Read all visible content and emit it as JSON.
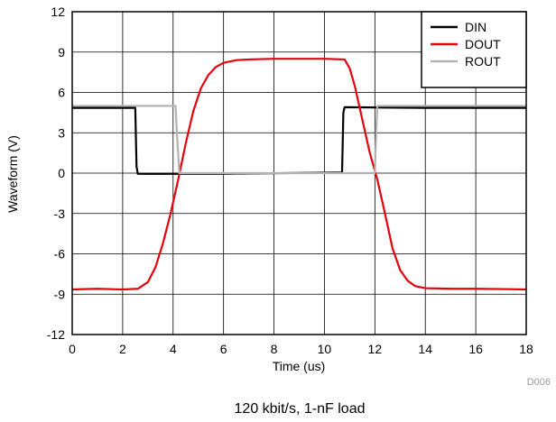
{
  "chart_data": {
    "type": "line",
    "xlabel": "Time (us)",
    "ylabel": "Waveform (V)",
    "xlim": [
      0,
      18
    ],
    "ylim": [
      -12,
      12
    ],
    "x_ticks": [
      "0",
      "2",
      "4",
      "6",
      "8",
      "10",
      "12",
      "14",
      "16",
      "18"
    ],
    "y_ticks": [
      "12",
      "9",
      "6",
      "3",
      "0",
      "-3",
      "-6",
      "-9",
      "-12"
    ],
    "grid": true,
    "legend_position": "top-right",
    "series": [
      {
        "name": "DIN",
        "color": "#000000",
        "x": [
          0,
          2.5,
          2.55,
          2.6,
          3.0,
          6.0,
          10.7,
          10.75,
          10.8,
          14.0,
          18.0
        ],
        "y": [
          4.85,
          4.85,
          0.5,
          -0.05,
          -0.05,
          -0.05,
          0.05,
          4.5,
          4.9,
          4.85,
          4.85
        ]
      },
      {
        "name": "DOUT",
        "color": "#e8000b",
        "x": [
          0,
          1.0,
          2.0,
          2.6,
          3.0,
          3.3,
          3.6,
          3.9,
          4.2,
          4.5,
          4.8,
          5.1,
          5.4,
          5.7,
          6.0,
          6.5,
          7.0,
          8.0,
          9.0,
          10.0,
          10.8,
          11.0,
          11.2,
          11.5,
          11.8,
          12.1,
          12.4,
          12.7,
          13.0,
          13.3,
          13.6,
          14.0,
          15.0,
          16.0,
          17.0,
          18.0
        ],
        "y": [
          -8.65,
          -8.6,
          -8.65,
          -8.6,
          -8.1,
          -7.0,
          -5.2,
          -3.0,
          -0.5,
          2.2,
          4.6,
          6.3,
          7.3,
          7.9,
          8.2,
          8.4,
          8.45,
          8.5,
          8.5,
          8.5,
          8.45,
          7.8,
          6.5,
          4.0,
          1.5,
          -0.5,
          -3.0,
          -5.6,
          -7.2,
          -8.0,
          -8.4,
          -8.55,
          -8.6,
          -8.6,
          -8.62,
          -8.65
        ]
      },
      {
        "name": "ROUT",
        "color": "#b2b2b2",
        "x": [
          0,
          4.1,
          4.15,
          4.25,
          5.0,
          8.0,
          11.9,
          12.0,
          12.05,
          12.1,
          14.0,
          18.0
        ],
        "y": [
          5.0,
          5.0,
          3.0,
          0.0,
          0.0,
          0.0,
          0.0,
          0.0,
          3.0,
          5.0,
          5.0,
          5.0
        ]
      }
    ]
  },
  "figure_id": "D006",
  "caption": "120 kbit/s, 1-nF load"
}
